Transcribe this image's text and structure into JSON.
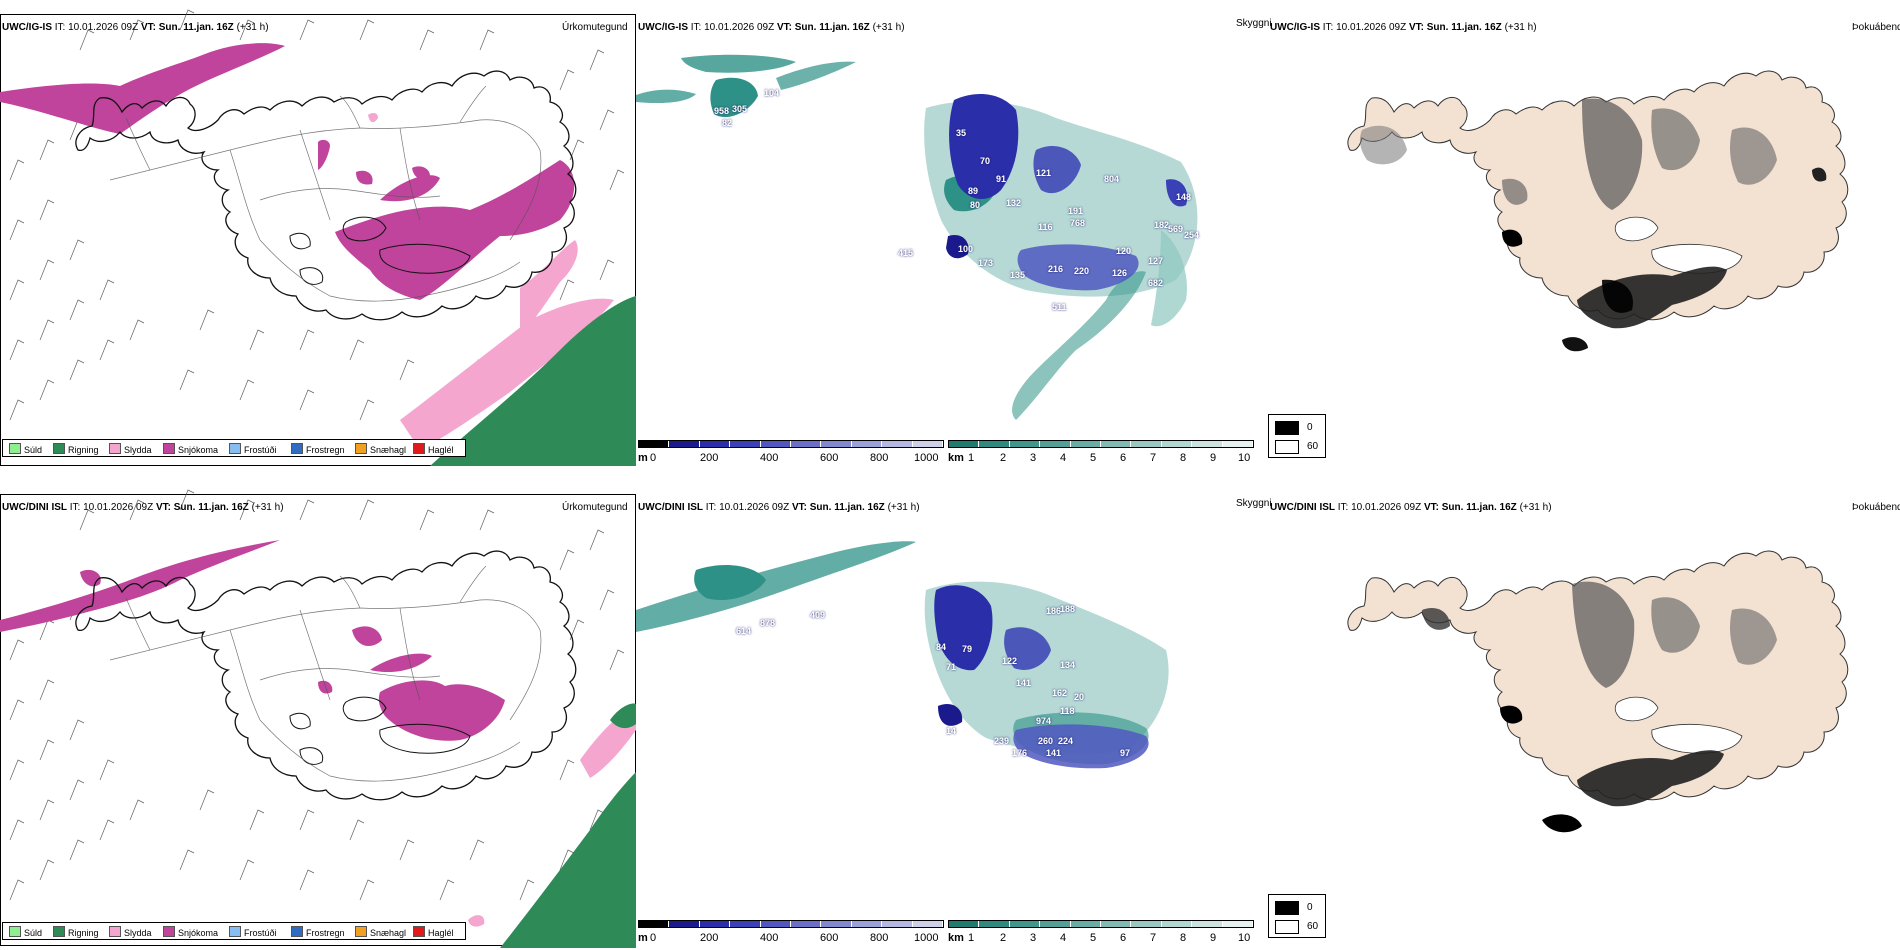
{
  "rows": [
    {
      "model": "UWC/IG-IS",
      "it_label": "IT:",
      "it_value": "10.01.2026 09Z",
      "vt_label": "VT:",
      "vt_value": "Sun. 11.jan. 16Z",
      "lead": "(+31 h)",
      "panels": {
        "precip_type": {
          "title": "Úrkomutegund"
        },
        "clouds": {
          "title": "Skyggni"
        },
        "fog": {
          "title": "Þokuábendi"
        }
      },
      "cloud_labels": [
        "104",
        "305",
        "958",
        "82",
        "35",
        "70",
        "91",
        "89",
        "80",
        "132",
        "121",
        "804",
        "191",
        "116",
        "768",
        "148",
        "182",
        "569",
        "254",
        "100",
        "173",
        "135",
        "216",
        "220",
        "120",
        "127",
        "126",
        "682",
        "511",
        "415"
      ]
    },
    {
      "model": "UWC/DINI ISL",
      "it_label": "IT:",
      "it_value": "10.01.2026 09Z",
      "vt_label": "VT:",
      "vt_value": "Sun. 11.jan. 16Z",
      "lead": "(+31 h)",
      "panels": {
        "precip_type": {
          "title": "Úrkomutegund"
        },
        "clouds": {
          "title": "Skyggni"
        },
        "fog": {
          "title": "Þokuábendi"
        }
      },
      "cloud_labels": [
        "409",
        "878",
        "614",
        "186",
        "188",
        "84",
        "79",
        "71",
        "122",
        "141",
        "134",
        "162",
        "20",
        "118",
        "974",
        "239",
        "260",
        "224",
        "176",
        "141",
        "97",
        "14"
      ]
    }
  ],
  "precip_legend": [
    {
      "label": "Súld",
      "color": "#90ee90"
    },
    {
      "label": "Rigning",
      "color": "#2e8b57"
    },
    {
      "label": "Slydda",
      "color": "#f4a6cf"
    },
    {
      "label": "Snjókoma",
      "color": "#c0449c"
    },
    {
      "label": "Frostúði",
      "color": "#87bdf0"
    },
    {
      "label": "Frostregn",
      "color": "#2f6cc2"
    },
    {
      "label": "Snæhagl",
      "color": "#f2a020"
    },
    {
      "label": "Haglél",
      "color": "#e01a1a"
    }
  ],
  "cbar_cloud_base": {
    "unit": "m",
    "ticks": [
      "0",
      "200",
      "400",
      "600",
      "800",
      "1000"
    ],
    "colors": [
      "#000000",
      "#1a1a8c",
      "#2a2ea8",
      "#3a40b5",
      "#5058c0",
      "#6a70c8",
      "#8088d0",
      "#9aa0d8",
      "#b4b8e0",
      "#cdd0ea"
    ]
  },
  "cbar_visibility": {
    "unit": "km",
    "ticks": [
      "1",
      "2",
      "3",
      "4",
      "5",
      "6",
      "7",
      "8",
      "9",
      "10"
    ],
    "colors": [
      "#1f7a70",
      "#2e8a80",
      "#3e968c",
      "#52a198",
      "#68ada5",
      "#80bab3",
      "#98c8c1",
      "#b2d6d0",
      "#cce4df",
      "#e6f2f0"
    ]
  },
  "fog_legend": {
    "max_label": "0",
    "min_label": "60",
    "max_color": "#000000",
    "min_color": "#ffffff"
  },
  "colors": {
    "land_fog": "#f3e1d2",
    "roads": "#e87a22",
    "roads_red": "#e0402a",
    "snow": "#c0449c",
    "sleet": "#f4a6cf",
    "rain": "#2e8b57",
    "teal": "#2e9187"
  }
}
